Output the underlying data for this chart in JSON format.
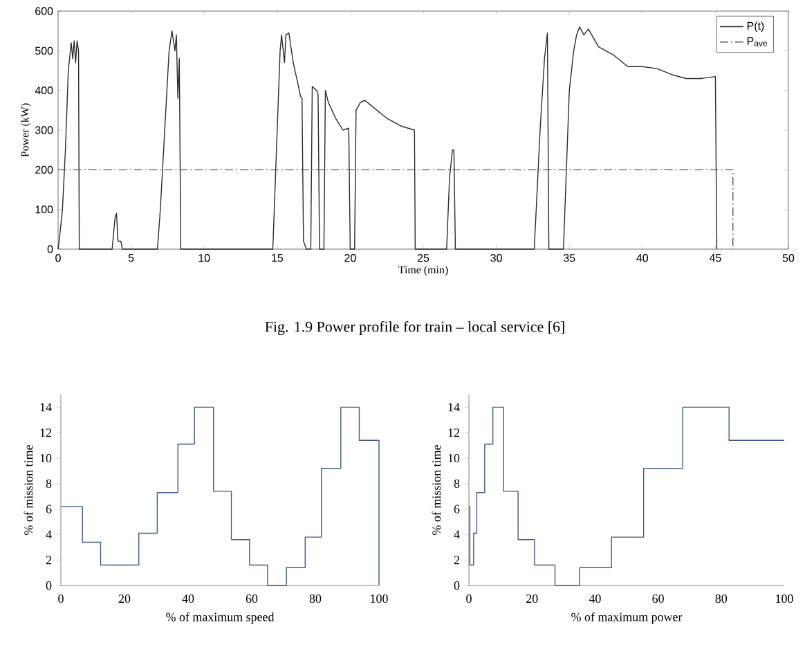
{
  "chart_data": [
    {
      "type": "line",
      "xlabel": "Time (min)",
      "ylabel": "Power (kW)",
      "xlim": [
        0,
        50
      ],
      "ylim": [
        0,
        600
      ],
      "xticks": [
        0,
        5,
        10,
        15,
        20,
        25,
        30,
        35,
        40,
        45,
        50
      ],
      "yticks": [
        0,
        100,
        200,
        300,
        400,
        500,
        600
      ],
      "legend": "top right",
      "grid": false,
      "annotations": [
        "Fig. 1.9 Power profile for train – local service [6]"
      ],
      "series": [
        {
          "name": "P(t)",
          "color": "#2b2b2b",
          "line_style": "solid",
          "x": [
            0,
            0.1,
            0.3,
            0.5,
            0.7,
            0.9,
            1.0,
            1.1,
            1.2,
            1.3,
            1.4,
            1.45,
            3.7,
            3.9,
            4.0,
            4.1,
            4.3,
            4.4,
            6.8,
            7.0,
            7.3,
            7.6,
            7.8,
            8.0,
            8.1,
            8.2,
            8.3,
            8.4,
            14.7,
            15.0,
            15.2,
            15.3,
            15.5,
            15.6,
            15.8,
            16.1,
            16.4,
            16.6,
            16.7,
            16.8,
            17.0,
            17.3,
            17.4,
            17.7,
            17.8,
            17.9,
            18.2,
            18.3,
            18.5,
            19.0,
            19.5,
            19.9,
            20.0,
            20.3,
            20.4,
            20.7,
            21.0,
            21.5,
            22.5,
            23.5,
            24.4,
            24.45,
            26.6,
            26.8,
            27.0,
            27.1,
            27.2,
            32.6,
            33.0,
            33.3,
            33.5,
            33.6,
            34.6,
            34.8,
            35.0,
            35.3,
            35.5,
            35.7,
            36.0,
            36.3,
            37,
            38,
            39,
            40,
            41,
            42,
            43,
            44,
            45.0,
            45.1
          ],
          "values": [
            0,
            30,
            100,
            250,
            450,
            520,
            480,
            525,
            470,
            525,
            500,
            0,
            0,
            80,
            90,
            20,
            20,
            0,
            0,
            100,
            300,
            500,
            550,
            500,
            540,
            380,
            480,
            0,
            0,
            300,
            500,
            540,
            470,
            540,
            545,
            470,
            420,
            385,
            380,
            20,
            0,
            0,
            410,
            400,
            390,
            0,
            0,
            400,
            370,
            330,
            300,
            305,
            0,
            0,
            350,
            370,
            375,
            360,
            330,
            310,
            300,
            0,
            0,
            180,
            250,
            250,
            0,
            0,
            300,
            480,
            545,
            0,
            0,
            200,
            400,
            500,
            540,
            560,
            540,
            555,
            510,
            490,
            460,
            460,
            455,
            440,
            430,
            430,
            435,
            0
          ]
        },
        {
          "name": "P$_{ave}$",
          "color": "#555555",
          "line_style": "dashdot",
          "x": [
            0,
            46.2,
            46.2
          ],
          "values": [
            200,
            200,
            0
          ]
        }
      ]
    },
    {
      "type": "step",
      "xlabel": "% of maximum speed",
      "ylabel": "% of mission time",
      "xlim": [
        0,
        100
      ],
      "ylim": [
        0,
        15
      ],
      "xticks": [
        0,
        20,
        40,
        60,
        80,
        100
      ],
      "yticks": [
        0,
        2,
        4,
        6,
        8,
        10,
        12,
        14
      ],
      "legend": false,
      "grid": false,
      "series": [
        {
          "color": "#3f5a8a",
          "x": [
            0,
            6.8,
            12.5,
            24.5,
            30.3,
            36.8,
            42,
            48,
            53.6,
            59.3,
            65,
            70.9,
            76.8,
            81.9,
            88,
            93.8,
            100
          ],
          "values": [
            6.2,
            3.4,
            1.6,
            4.1,
            7.3,
            11.1,
            14.0,
            7.4,
            3.6,
            1.6,
            0,
            1.4,
            3.8,
            9.2,
            14.0,
            11.4,
            0
          ]
        }
      ]
    },
    {
      "type": "step",
      "xlabel": "% of maximum power",
      "ylabel": "% of mission time",
      "xlim": [
        0,
        100
      ],
      "ylim": [
        0,
        15
      ],
      "xticks": [
        0,
        20,
        40,
        60,
        80,
        100
      ],
      "yticks": [
        0,
        2,
        4,
        6,
        8,
        10,
        12,
        14
      ],
      "legend": false,
      "grid": false,
      "series": [
        {
          "color": "#3f5a8a",
          "x": [
            0,
            0.3,
            1.5,
            2.5,
            5,
            7.6,
            11,
            15.6,
            20.8,
            27.3,
            35.1,
            45.2,
            55.4,
            67.8,
            82.5,
            100
          ],
          "values": [
            6.2,
            1.6,
            4.1,
            7.3,
            11.1,
            14.0,
            7.4,
            3.6,
            1.6,
            0,
            1.4,
            3.8,
            9.2,
            14.0,
            11.4,
            11.4
          ]
        }
      ]
    }
  ]
}
